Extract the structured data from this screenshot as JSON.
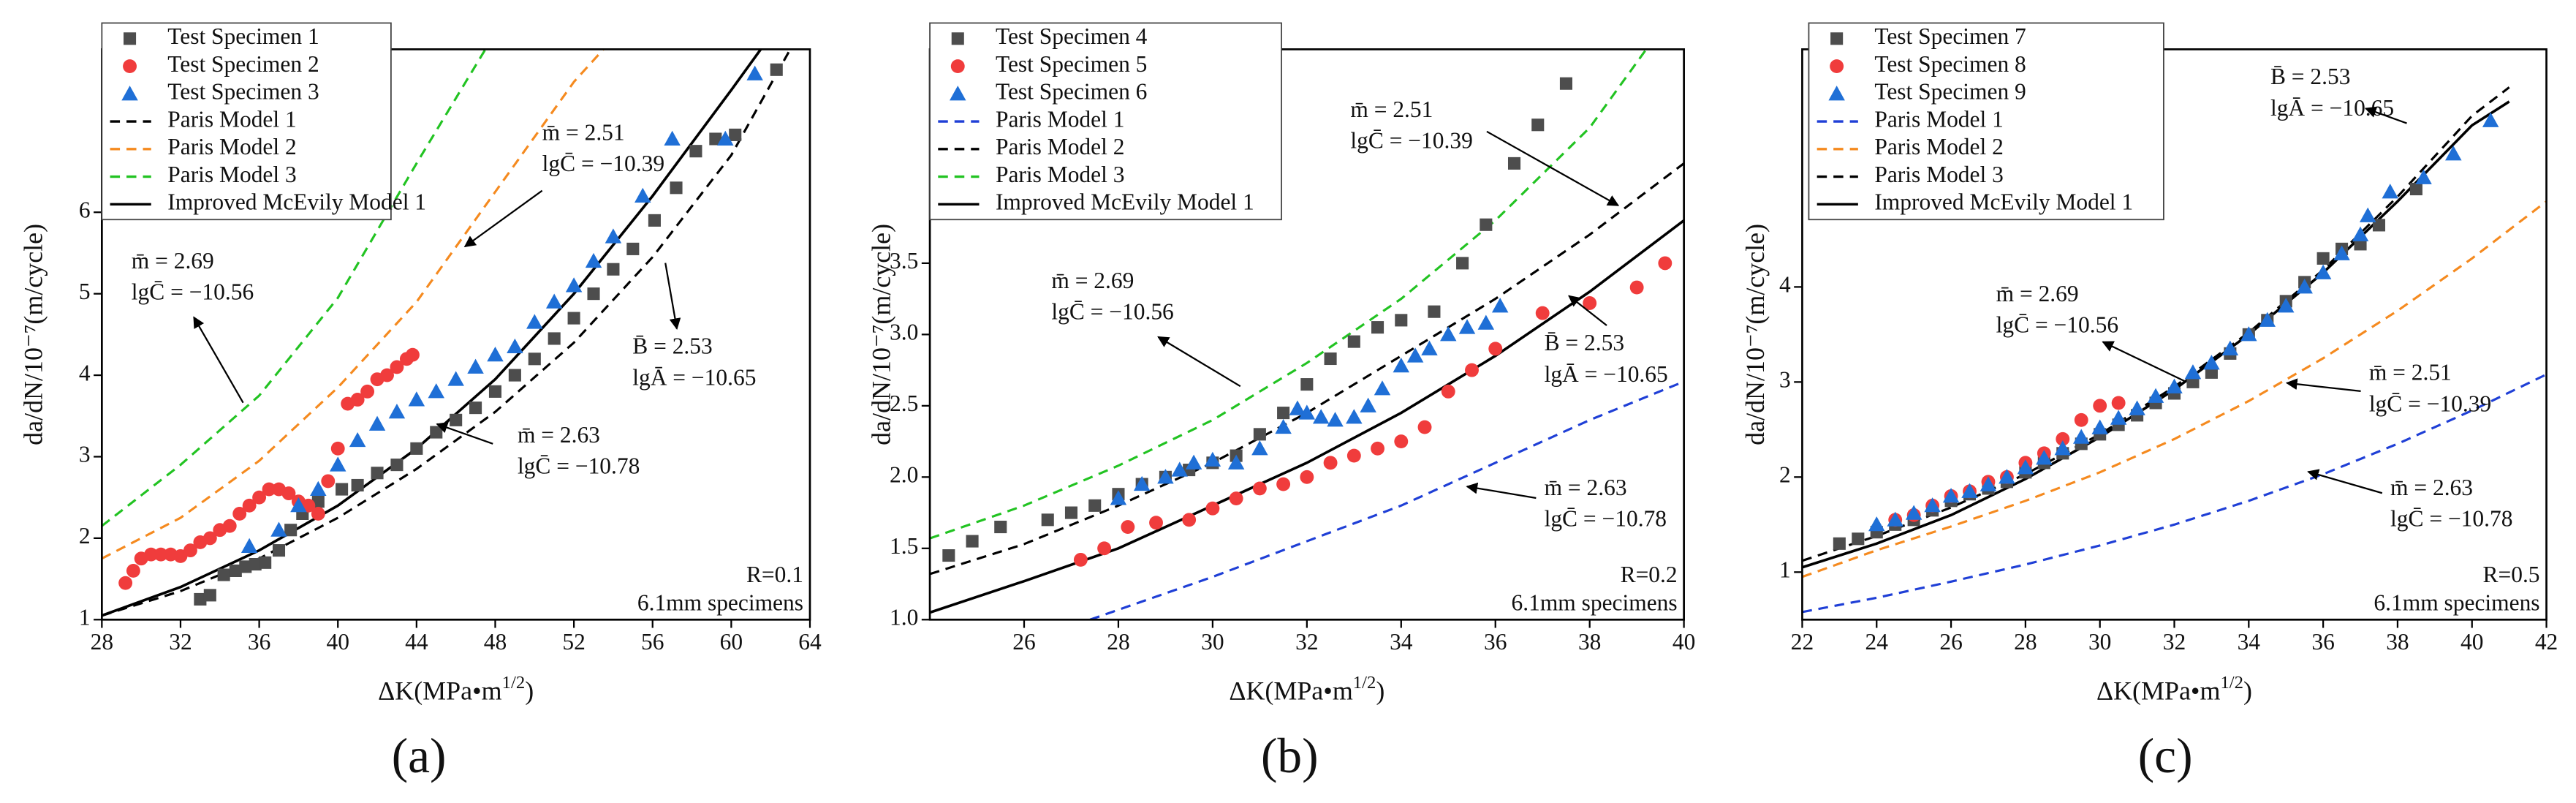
{
  "chart_data": [
    {
      "type": "scatter",
      "panel": "(a)",
      "xlabel": {
        "base": "ΔK(MPa•m",
        "sup": "1/2",
        "end": ")"
      },
      "ylabel": "da/dN/10⁻⁷(m/cycle)",
      "xlim": [
        28,
        64
      ],
      "xticks": [
        28,
        32,
        36,
        40,
        44,
        48,
        52,
        56,
        60,
        64
      ],
      "ylim": [
        1,
        8
      ],
      "yticks": [
        1,
        2,
        3,
        4,
        5,
        6
      ],
      "notes": [
        "R=0.1",
        "6.1mm specimens"
      ],
      "series": [
        {
          "name": "Test Specimen 1",
          "color": "#4d4d4d",
          "marker": "square",
          "x": [
            33.0,
            33.5,
            34.2,
            34.8,
            35.3,
            35.8,
            36.3,
            37.0,
            37.6,
            38.2,
            39.0,
            40.2,
            41.0,
            42.0,
            43.0,
            44.0,
            45.0,
            46.0,
            47.0,
            48.0,
            49.0,
            50.0,
            51.0,
            52.0,
            53.0,
            54.0,
            55.0,
            56.1,
            57.2,
            58.2,
            59.2,
            60.2,
            62.3
          ],
          "values": [
            1.25,
            1.3,
            1.55,
            1.6,
            1.65,
            1.68,
            1.7,
            1.85,
            2.1,
            2.3,
            2.45,
            2.6,
            2.65,
            2.8,
            2.9,
            3.1,
            3.3,
            3.45,
            3.6,
            3.8,
            4.0,
            4.2,
            4.45,
            4.7,
            5.0,
            5.3,
            5.55,
            5.9,
            6.3,
            6.75,
            6.9,
            6.95,
            7.75
          ]
        },
        {
          "name": "Test Specimen 2",
          "color": "#f03c3c",
          "marker": "circle",
          "x": [
            29.2,
            29.6,
            30.0,
            30.5,
            31.0,
            31.5,
            32.0,
            32.5,
            33.0,
            33.5,
            34.0,
            34.5,
            35.0,
            35.5,
            36.0,
            36.5,
            37.0,
            37.5,
            38.0,
            38.5,
            39.0,
            39.5,
            40.0,
            40.5,
            41.0,
            41.5,
            42.0,
            42.5,
            43.0,
            43.5,
            43.8
          ],
          "values": [
            1.45,
            1.6,
            1.75,
            1.8,
            1.8,
            1.8,
            1.78,
            1.85,
            1.95,
            2.0,
            2.1,
            2.15,
            2.3,
            2.4,
            2.5,
            2.6,
            2.6,
            2.55,
            2.45,
            2.4,
            2.3,
            2.7,
            3.1,
            3.65,
            3.7,
            3.8,
            3.95,
            4.0,
            4.1,
            4.2,
            4.25
          ]
        },
        {
          "name": "Test Specimen 3",
          "color": "#1f6fd6",
          "marker": "triangle",
          "x": [
            35.5,
            37.0,
            38.0,
            39.0,
            40.0,
            41.0,
            42.0,
            43.0,
            44.0,
            45.0,
            46.0,
            47.0,
            48.0,
            49.0,
            50.0,
            51.0,
            52.0,
            53.0,
            54.0,
            55.5,
            57.0,
            59.7,
            61.2
          ],
          "values": [
            1.9,
            2.1,
            2.4,
            2.6,
            2.9,
            3.2,
            3.4,
            3.55,
            3.7,
            3.8,
            3.95,
            4.1,
            4.25,
            4.35,
            4.65,
            4.9,
            5.1,
            5.4,
            5.7,
            6.2,
            6.9,
            6.9,
            7.7
          ]
        },
        {
          "name": "Paris Model 1",
          "color": "#000000",
          "line": "dashed",
          "x": [
            28,
            32,
            36,
            40,
            44,
            48,
            52,
            56,
            60,
            63
          ],
          "values": [
            1.05,
            1.35,
            1.75,
            2.25,
            2.85,
            3.55,
            4.4,
            5.45,
            6.7,
            8.0
          ]
        },
        {
          "name": "Paris Model 2",
          "color": "#f58a1f",
          "line": "dashed",
          "x": [
            28,
            32,
            36,
            40,
            44,
            48,
            52,
            53.5
          ],
          "values": [
            1.75,
            2.25,
            2.95,
            3.85,
            4.9,
            6.25,
            7.6,
            8.0
          ]
        },
        {
          "name": "Paris Model 3",
          "color": "#22c322",
          "line": "dashed",
          "x": [
            28,
            32,
            36,
            40,
            44,
            47.5
          ],
          "values": [
            2.15,
            2.9,
            3.75,
            4.95,
            6.6,
            8.0
          ]
        },
        {
          "name": "Improved McEvily Model 1",
          "color": "#000000",
          "line": "solid",
          "x": [
            28,
            32,
            36,
            40,
            44,
            48,
            52,
            56,
            60,
            61.5
          ],
          "values": [
            1.05,
            1.4,
            1.85,
            2.4,
            3.1,
            3.95,
            5.0,
            6.2,
            7.5,
            8.0
          ]
        }
      ],
      "annotations": [
        {
          "lines": [
            "m̄ = 2.51",
            "lgC̄ = −10.39"
          ]
        },
        {
          "lines": [
            "m̄ = 2.69",
            "lgC̄ = −10.56"
          ]
        },
        {
          "lines": [
            "B̄ = 2.53",
            "lgĀ = −10.65"
          ]
        },
        {
          "lines": [
            "m̄ = 2.63",
            "lgC̄ = −10.78"
          ]
        }
      ]
    },
    {
      "type": "scatter",
      "panel": "(b)",
      "xlabel": {
        "base": "ΔK(MPa•m",
        "sup": "1/2",
        "end": ")"
      },
      "ylabel": "da/dN/10⁻⁷(m/cycle)",
      "xlim": [
        24,
        40
      ],
      "xticks": [
        26,
        28,
        30,
        32,
        34,
        36,
        38,
        40
      ],
      "ylim": [
        1,
        5
      ],
      "yticks": [
        {
          "value": 1,
          "label": "1.0"
        },
        1.5,
        {
          "value": 2,
          "label": "2.0"
        },
        2.5,
        {
          "value": 3,
          "label": "3.0"
        },
        3.5
      ],
      "notes": [
        "R=0.2",
        "6.1mm specimens"
      ],
      "series": [
        {
          "name": "Test Specimen 4",
          "color": "#4d4d4d",
          "marker": "square",
          "x": [
            24.4,
            24.9,
            25.5,
            26.5,
            27.0,
            27.5,
            28.0,
            28.5,
            29.0,
            29.5,
            30.0,
            30.5,
            31.0,
            31.5,
            32.0,
            32.5,
            33.0,
            33.5,
            34.0,
            34.7,
            35.3,
            35.8,
            36.4,
            36.9,
            37.5
          ],
          "values": [
            1.45,
            1.55,
            1.65,
            1.7,
            1.75,
            1.8,
            1.88,
            1.95,
            2.0,
            2.05,
            2.1,
            2.15,
            2.3,
            2.45,
            2.65,
            2.83,
            2.95,
            3.05,
            3.1,
            3.16,
            3.5,
            3.77,
            4.2,
            4.47,
            4.76
          ]
        },
        {
          "name": "Test Specimen 5",
          "color": "#f03c3c",
          "marker": "circle",
          "x": [
            27.2,
            27.7,
            28.2,
            28.8,
            29.5,
            30.0,
            30.5,
            31.0,
            31.5,
            32.0,
            32.5,
            33.0,
            33.5,
            34.0,
            34.5,
            35.0,
            35.5,
            36.0,
            37.0,
            38.0,
            39.0,
            39.6
          ],
          "values": [
            1.42,
            1.5,
            1.65,
            1.68,
            1.7,
            1.78,
            1.85,
            1.92,
            1.95,
            2.0,
            2.1,
            2.15,
            2.2,
            2.25,
            2.35,
            2.6,
            2.75,
            2.9,
            3.15,
            3.22,
            3.33,
            3.5
          ]
        },
        {
          "name": "Test Specimen 6",
          "color": "#1f6fd6",
          "marker": "triangle",
          "x": [
            28.0,
            28.5,
            29.0,
            29.3,
            29.6,
            30.0,
            30.5,
            31.0,
            31.5,
            31.8,
            32.0,
            32.3,
            32.6,
            33.0,
            33.3,
            33.6,
            34.0,
            34.3,
            34.6,
            35.0,
            35.4,
            35.8,
            36.1
          ],
          "values": [
            1.85,
            1.95,
            2.0,
            2.05,
            2.1,
            2.12,
            2.1,
            2.2,
            2.35,
            2.48,
            2.45,
            2.42,
            2.4,
            2.42,
            2.5,
            2.62,
            2.78,
            2.85,
            2.9,
            3.0,
            3.05,
            3.08,
            3.2
          ]
        },
        {
          "name": "Paris Model 1",
          "color": "#1f3fd6",
          "line": "dashed",
          "x": [
            27.4,
            30,
            32,
            34,
            36,
            38,
            40
          ],
          "values": [
            1.0,
            1.3,
            1.55,
            1.8,
            2.1,
            2.4,
            2.67
          ]
        },
        {
          "name": "Paris Model 2",
          "color": "#000000",
          "line": "dashed",
          "x": [
            24,
            26,
            28,
            30,
            32,
            34,
            36,
            38,
            40
          ],
          "values": [
            1.32,
            1.53,
            1.8,
            2.1,
            2.45,
            2.85,
            3.25,
            3.7,
            4.2
          ]
        },
        {
          "name": "Paris Model 3",
          "color": "#22c322",
          "line": "dashed",
          "x": [
            24,
            26,
            28,
            30,
            32,
            34,
            36,
            38,
            39.2
          ],
          "values": [
            1.57,
            1.8,
            2.08,
            2.4,
            2.8,
            3.25,
            3.8,
            4.45,
            5.0
          ]
        },
        {
          "name": "Improved McEvily Model 1",
          "color": "#000000",
          "line": "solid",
          "x": [
            24,
            26,
            28,
            30,
            32,
            34,
            36,
            38,
            40
          ],
          "values": [
            1.05,
            1.27,
            1.5,
            1.8,
            2.1,
            2.45,
            2.85,
            3.3,
            3.8
          ]
        }
      ],
      "annotations": [
        {
          "lines": [
            "m̄ = 2.51",
            "lgC̄ = −10.39"
          ]
        },
        {
          "lines": [
            "m̄ = 2.69",
            "lgC̄ = −10.56"
          ]
        },
        {
          "lines": [
            "B̄ = 2.53",
            "lgĀ = −10.65"
          ]
        },
        {
          "lines": [
            "m̄ = 2.63",
            "lgC̄ = −10.78"
          ]
        }
      ]
    },
    {
      "type": "scatter",
      "panel": "(c)",
      "xlabel": {
        "base": "ΔK(MPa•m",
        "sup": "1/2",
        "end": ")"
      },
      "ylabel": "da/dN/10⁻⁷(m/cycle)",
      "xlim": [
        22,
        42
      ],
      "xticks": [
        22,
        24,
        26,
        28,
        30,
        32,
        34,
        36,
        38,
        40,
        42
      ],
      "ylim": [
        0.5,
        6.5
      ],
      "yticks": [
        1,
        2,
        3,
        4
      ],
      "notes": [
        "R=0.5",
        "6.1mm specimens"
      ],
      "series": [
        {
          "name": "Test Specimen 7",
          "color": "#4d4d4d",
          "marker": "square",
          "x": [
            23.0,
            23.5,
            24.0,
            24.5,
            25.0,
            25.5,
            26.0,
            26.5,
            27.0,
            27.5,
            28.0,
            28.5,
            29.0,
            29.5,
            30.0,
            30.5,
            31.0,
            31.5,
            32.0,
            32.5,
            33.0,
            33.5,
            34.0,
            34.5,
            35.0,
            35.5,
            36.0,
            36.5,
            37.0,
            37.5,
            38.5
          ],
          "values": [
            1.3,
            1.35,
            1.42,
            1.5,
            1.55,
            1.65,
            1.75,
            1.82,
            1.88,
            1.95,
            2.05,
            2.15,
            2.25,
            2.35,
            2.45,
            2.55,
            2.65,
            2.78,
            2.88,
            3.0,
            3.1,
            3.3,
            3.5,
            3.65,
            3.85,
            4.05,
            4.3,
            4.4,
            4.45,
            4.65,
            5.03
          ]
        },
        {
          "name": "Test Specimen 8",
          "color": "#f03c3c",
          "marker": "circle",
          "x": [
            24.5,
            25.0,
            25.5,
            26.0,
            26.5,
            27.0,
            27.5,
            28.0,
            28.5,
            29.0,
            29.5,
            30.0,
            30.5
          ],
          "values": [
            1.55,
            1.6,
            1.7,
            1.8,
            1.85,
            1.95,
            2.0,
            2.15,
            2.25,
            2.4,
            2.6,
            2.75,
            2.78
          ]
        },
        {
          "name": "Test Specimen 9",
          "color": "#1f6fd6",
          "marker": "triangle",
          "x": [
            24.0,
            24.5,
            25.0,
            25.5,
            26.0,
            26.5,
            27.0,
            27.5,
            28.0,
            28.5,
            29.0,
            29.5,
            30.0,
            30.5,
            31.0,
            31.5,
            32.0,
            32.5,
            33.0,
            33.5,
            34.0,
            34.5,
            35.0,
            35.5,
            36.0,
            36.5,
            37.0,
            37.2,
            37.8,
            38.7,
            39.5,
            40.5
          ],
          "values": [
            1.5,
            1.55,
            1.62,
            1.7,
            1.8,
            1.85,
            1.92,
            2.0,
            2.1,
            2.2,
            2.3,
            2.42,
            2.52,
            2.62,
            2.72,
            2.85,
            2.95,
            3.1,
            3.2,
            3.35,
            3.5,
            3.65,
            3.8,
            4.0,
            4.15,
            4.35,
            4.55,
            4.75,
            5.0,
            5.15,
            5.4,
            5.75
          ]
        },
        {
          "name": "Paris Model 1",
          "color": "#1f3fd6",
          "line": "dashed",
          "x": [
            22,
            24,
            26,
            28,
            30,
            32,
            34,
            36,
            38,
            40,
            42
          ],
          "values": [
            0.58,
            0.73,
            0.9,
            1.08,
            1.28,
            1.5,
            1.75,
            2.03,
            2.35,
            2.7,
            3.08
          ]
        },
        {
          "name": "Paris Model 2",
          "color": "#f58a1f",
          "line": "dashed",
          "x": [
            22,
            24,
            26,
            28,
            30,
            32,
            34,
            36,
            38,
            40,
            42
          ],
          "values": [
            0.95,
            1.23,
            1.48,
            1.75,
            2.05,
            2.4,
            2.8,
            3.25,
            3.75,
            4.3,
            4.9
          ]
        },
        {
          "name": "Paris Model 3",
          "color": "#000000",
          "line": "dashed",
          "x": [
            22,
            24,
            26,
            28,
            30,
            32,
            34,
            36,
            38,
            40,
            41
          ],
          "values": [
            1.12,
            1.38,
            1.68,
            2.03,
            2.45,
            2.95,
            3.52,
            4.18,
            4.95,
            5.8,
            6.1
          ]
        },
        {
          "name": "Improved McEvily Model 1",
          "color": "#000000",
          "line": "solid",
          "x": [
            22,
            24,
            26,
            28,
            30,
            32,
            34,
            36,
            38,
            40,
            41
          ],
          "values": [
            1.05,
            1.3,
            1.6,
            1.98,
            2.42,
            2.92,
            3.5,
            4.15,
            4.9,
            5.7,
            5.95
          ]
        }
      ],
      "annotations": [
        {
          "lines": [
            "B̄ = 2.53",
            "lgĀ = −10.65"
          ]
        },
        {
          "lines": [
            "m̄ = 2.69",
            "lgC̄ = −10.56"
          ]
        },
        {
          "lines": [
            "m̄ = 2.51",
            "lgC̄ = −10.39"
          ]
        },
        {
          "lines": [
            "m̄ = 2.63",
            "lgC̄ = −10.78"
          ]
        }
      ]
    }
  ]
}
